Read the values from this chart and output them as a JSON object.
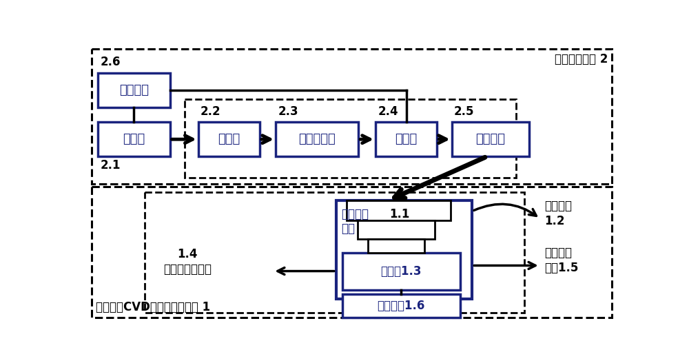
{
  "bg_color": "#ffffff",
  "box_edge_color": "#1a237e",
  "black": "#000000",
  "title_sys2": "激光刻蚀系统 2",
  "title_sys1": "低温热丝CVD金冈石沉积系统 1",
  "label_kongzhi": "控制单元",
  "label_jiguangqi": "激光器",
  "label_kuoshu": "扩束镜",
  "label_dongtai": "动态聚焦镜",
  "label_heshu": "合束镜",
  "label_saomiao": "扫描振镜",
  "label_zhenkong": "真空反应\n腔室",
  "label_gongtai": "工作台1.3",
  "label_gonqi": "供气系统1.6",
  "label_guangxue": "光学窗口\n1.2",
  "label_rejia": "热丝加热\n系统1.5",
  "label_jingangshi": "1.4\n金冈石薄膜试样",
  "num_26": "2.6",
  "num_21": "2.1",
  "num_22": "2.2",
  "num_23": "2.3",
  "num_24": "2.4",
  "num_25": "2.5",
  "num_11": "1.1"
}
